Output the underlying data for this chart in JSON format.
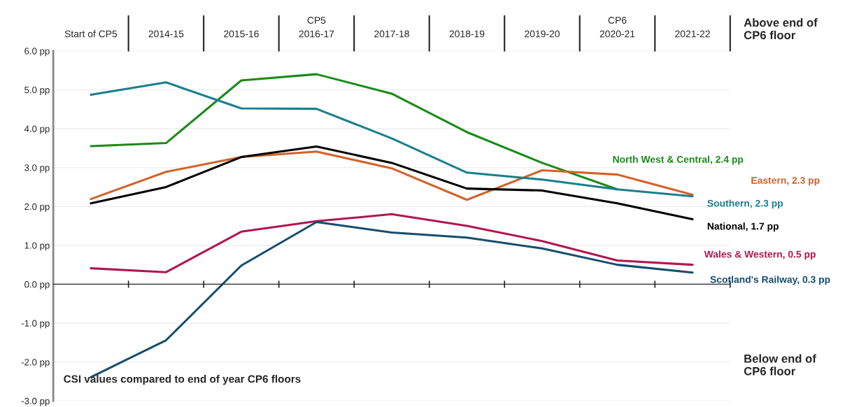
{
  "chart_data": {
    "type": "line",
    "categories": [
      "Start of CP5",
      "2014-15",
      "2015-16",
      "2016-17",
      "2017-18",
      "2018-19",
      "2019-20",
      "2020-21",
      "2021-22"
    ],
    "series": [
      {
        "name": "North West & Central, 2.4 pp",
        "color": "#1a8a1a",
        "values": [
          3.55,
          3.63,
          5.24,
          5.4,
          4.9,
          3.91,
          3.12,
          2.44,
          null
        ]
      },
      {
        "name": "Eastern, 2.3 pp",
        "color": "#d2622a",
        "values": [
          2.19,
          2.89,
          3.27,
          3.41,
          2.98,
          2.17,
          2.93,
          2.82,
          2.3
        ]
      },
      {
        "name": "Southern, 2.3 pp",
        "color": "#1a7f8e",
        "values": [
          4.87,
          5.19,
          4.52,
          4.51,
          3.75,
          2.87,
          2.69,
          2.44,
          2.26
        ]
      },
      {
        "name": "National, 1.7 pp",
        "color": "#000000",
        "values": [
          2.08,
          2.5,
          3.27,
          3.54,
          3.12,
          2.46,
          2.41,
          2.08,
          1.67
        ]
      },
      {
        "name": "Wales & Western, 0.5 pp",
        "color": "#b0174f",
        "values": [
          0.41,
          0.31,
          1.35,
          1.62,
          1.8,
          1.5,
          1.11,
          0.61,
          0.5
        ]
      },
      {
        "name": "Scotland's Railway, 0.3 pp",
        "color": "#164d6e",
        "values": [
          -2.39,
          -1.44,
          0.48,
          1.6,
          1.33,
          1.2,
          0.92,
          0.5,
          0.3
        ]
      }
    ],
    "ylim": [
      -3,
      6
    ],
    "yticks": [
      {
        "value": -3,
        "label": "-3.0 pp"
      },
      {
        "value": -2,
        "label": "-2.0 pp"
      },
      {
        "value": -1,
        "label": "-1.0 pp"
      },
      {
        "value": 0,
        "label": "0.0 pp"
      },
      {
        "value": 1,
        "label": "1.0 pp"
      },
      {
        "value": 2,
        "label": "2.0 pp"
      },
      {
        "value": 3,
        "label": "3.0 pp"
      },
      {
        "value": 4,
        "label": "4.0 pp"
      },
      {
        "value": 5,
        "label": "5.0 pp"
      },
      {
        "value": 6,
        "label": "6.0 pp"
      }
    ],
    "grid": "y",
    "legend": false,
    "marker": "none",
    "line_style": "solid",
    "annotations": [
      "CP5",
      "CP6",
      "Above end of CP6 floor",
      "Below end of CP6 floor",
      "CSI values compared to end of year CP6 floors"
    ]
  }
}
